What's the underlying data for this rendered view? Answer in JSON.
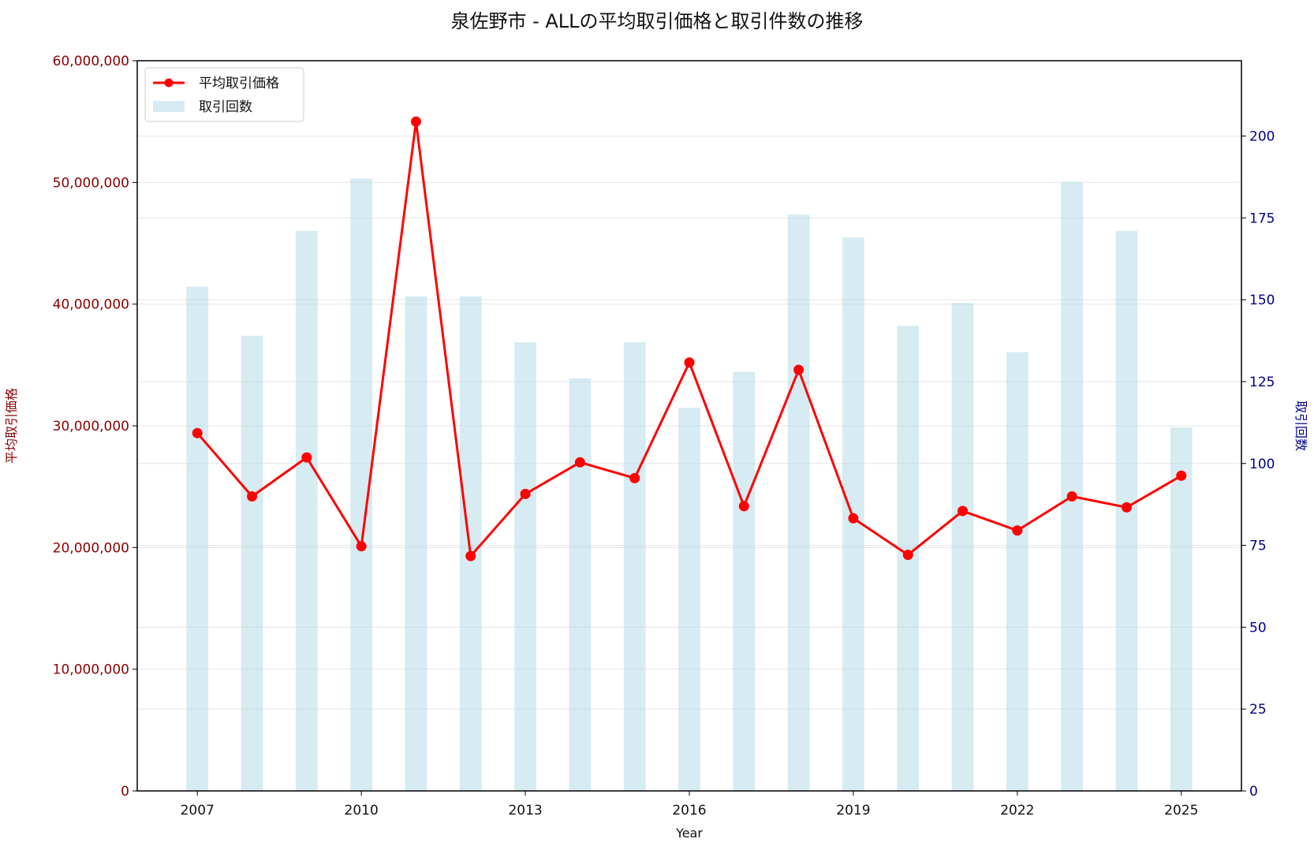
{
  "chart_data": {
    "type": "bar",
    "title": "泉佐野市 - ALLの平均取引価格と取引件数の推移",
    "xlabel": "Year",
    "ylabel_left": "平均取引価格",
    "ylabel_right": "取引回数",
    "x": [
      2007,
      2008,
      2009,
      2010,
      2011,
      2012,
      2013,
      2014,
      2015,
      2016,
      2017,
      2018,
      2019,
      2020,
      2021,
      2022,
      2023,
      2024,
      2025
    ],
    "x_ticks": [
      "2007",
      "2010",
      "2013",
      "2016",
      "2019",
      "2022",
      "2025"
    ],
    "x_range": [
      2005.9,
      2026.1
    ],
    "left_axis": {
      "ylim": [
        0,
        60000000
      ],
      "ticks": [
        "0",
        "10,000,000",
        "20,000,000",
        "30,000,000",
        "40,000,000",
        "50,000,000",
        "60,000,000"
      ],
      "color": "#8b0000"
    },
    "right_axis": {
      "ylim": [
        0,
        223
      ],
      "ticks": [
        "0",
        "25",
        "50",
        "75",
        "100",
        "125",
        "150",
        "175",
        "200"
      ],
      "color": "#00008b"
    },
    "grid": true,
    "legend_position": "top-left",
    "series": [
      {
        "name": "平均取引価格",
        "kind": "line",
        "axis": "left",
        "color": "#ff0000",
        "values": [
          29400000,
          24200000,
          27400000,
          20100000,
          55000000,
          19300000,
          24400000,
          27000000,
          25700000,
          35200000,
          23400000,
          34600000,
          22400000,
          19400000,
          23000000,
          21400000,
          24200000,
          23300000,
          25900000
        ]
      },
      {
        "name": "取引回数",
        "kind": "bar",
        "axis": "right",
        "color": "#add8e6",
        "values": [
          154,
          139,
          171,
          187,
          151,
          151,
          137,
          126,
          137,
          117,
          128,
          176,
          169,
          142,
          149,
          134,
          186,
          171,
          111
        ]
      }
    ]
  }
}
